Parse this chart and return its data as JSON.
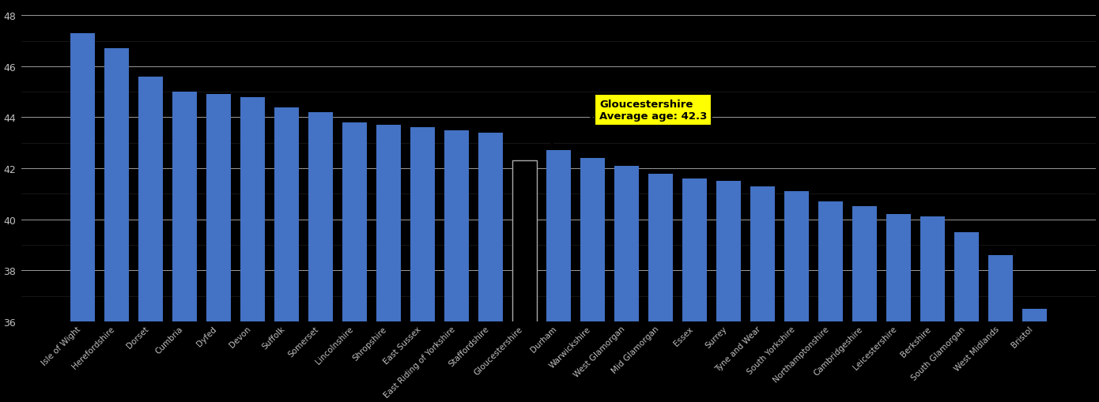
{
  "categories": [
    "Isle of Wight",
    "Herefordshire",
    "Dorset",
    "Cumbria",
    "Dyfed",
    "Devon",
    "Suffolk",
    "Somerset",
    "Lincolnshire",
    "Shropshire",
    "East Sussex",
    "East Riding of Yorkshire",
    "Staffordshire",
    "Gloucestershire",
    "Durham",
    "Warwickshire",
    "West Glamorgan",
    "Mid Glamorgan",
    "Essex",
    "Surrey",
    "Tyne and Wear",
    "South Yorkshire",
    "Northamptonshire",
    "Cambridgeshire",
    "Leicestershire",
    "Berkshire",
    "South Glamorgan",
    "West Midlands",
    "Bristol"
  ],
  "values": [
    47.3,
    46.7,
    45.6,
    45.0,
    44.9,
    44.8,
    44.4,
    44.2,
    43.8,
    43.7,
    43.6,
    43.5,
    43.4,
    42.3,
    42.7,
    42.4,
    42.1,
    41.8,
    41.6,
    41.5,
    41.3,
    41.1,
    40.7,
    40.5,
    40.2,
    40.1,
    39.5,
    38.6,
    36.5
  ],
  "gloucestershire_idx": 13,
  "bar_color": "#4472C4",
  "gloucestershire_bar_color": "#FFFFFF",
  "background_color": "#000000",
  "text_color": "#C0C0C0",
  "grid_color_major": "#FFFFFF",
  "grid_color_minor": "#404040",
  "annotation_bg": "#FFFF00",
  "annotation_line1": "Gloucestershire",
  "annotation_line2_prefix": "Average age: ",
  "annotation_value": "42.3",
  "ylim": [
    36,
    48.5
  ],
  "yticks_major": [
    36,
    38,
    40,
    42,
    44,
    46,
    48
  ]
}
